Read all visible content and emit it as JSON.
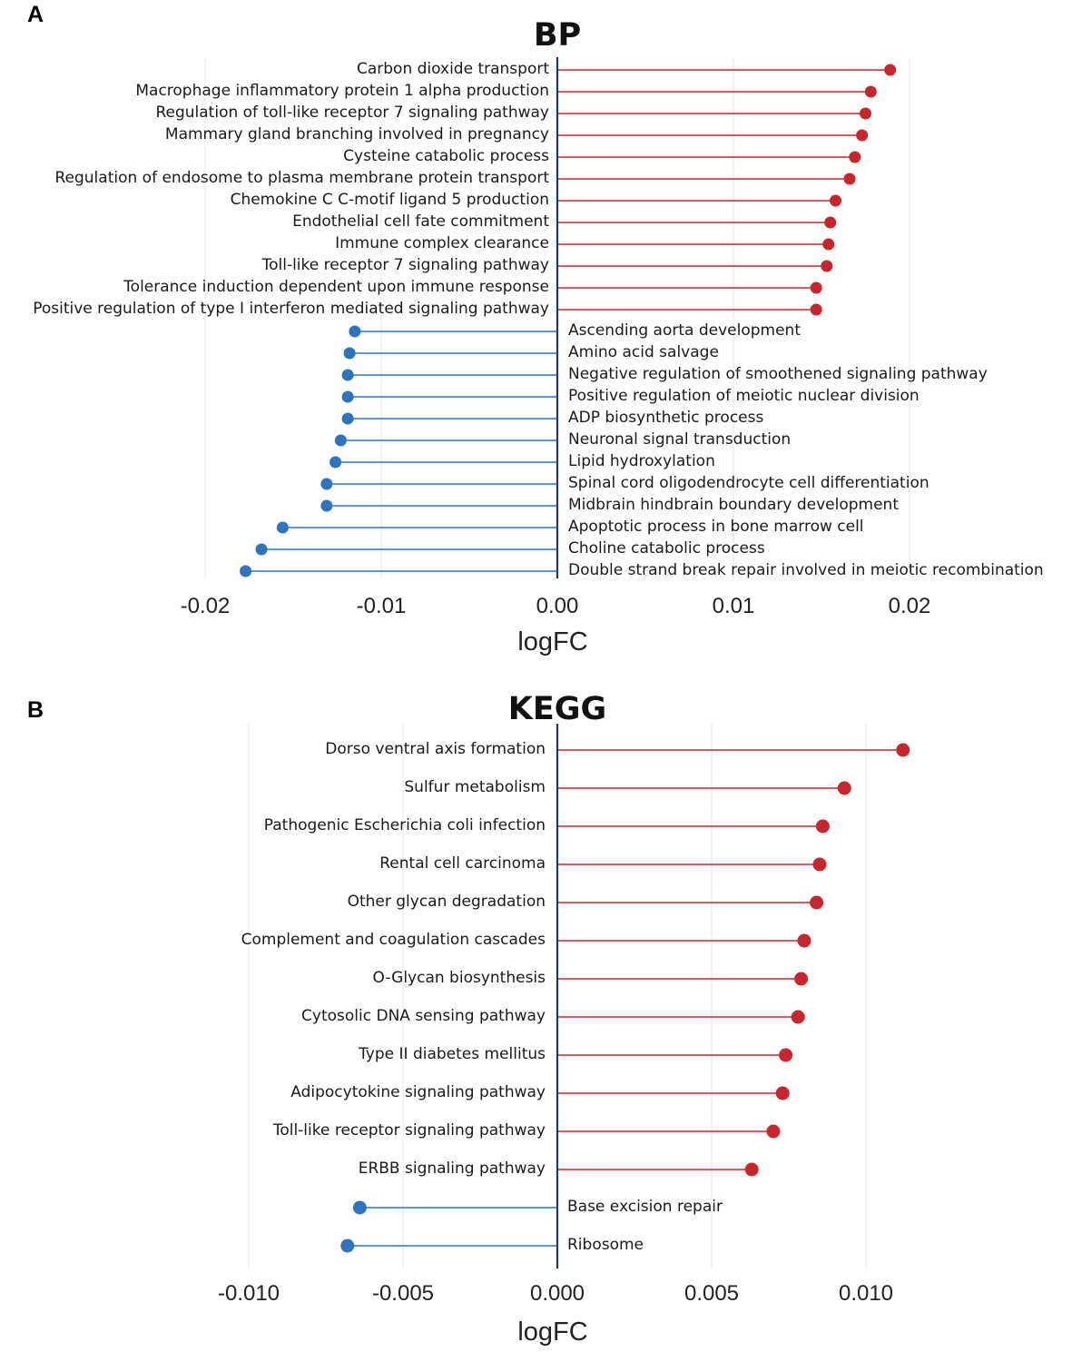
{
  "panels": {
    "a": "A",
    "b": "B"
  },
  "chart_data": [
    {
      "type": "lollipop",
      "title": "BP",
      "xlabel": "logFC",
      "ylabel": "",
      "xlim": [
        -0.02,
        0.02
      ],
      "xticks": [
        -0.02,
        -0.01,
        0.0,
        0.01,
        0.02
      ],
      "xtick_labels": [
        "-0.02",
        "-0.01",
        "0.00",
        "0.01",
        "0.02"
      ],
      "colors": {
        "up": "#c8252e",
        "down": "#2f73bd",
        "zero_line": "#1c3a5e"
      },
      "terms": [
        {
          "label": "Carbon dioxide transport",
          "value": 0.0189
        },
        {
          "label": "Macrophage inflammatory protein 1 alpha production",
          "value": 0.0178
        },
        {
          "label": "Regulation of toll-like receptor 7 signaling pathway",
          "value": 0.0175
        },
        {
          "label": "Mammary gland branching involved in pregnancy",
          "value": 0.0173
        },
        {
          "label": "Cysteine catabolic process",
          "value": 0.0169
        },
        {
          "label": "Regulation of endosome to plasma membrane protein transport",
          "value": 0.0166
        },
        {
          "label": "Chemokine C C-motif ligand 5 production",
          "value": 0.0158
        },
        {
          "label": "Endothelial cell fate commitment",
          "value": 0.0155
        },
        {
          "label": "Immune complex clearance",
          "value": 0.0154
        },
        {
          "label": "Toll-like receptor 7 signaling pathway",
          "value": 0.0153
        },
        {
          "label": "Tolerance induction dependent upon immune response",
          "value": 0.0147
        },
        {
          "label": "Positive regulation of type I interferon mediated signaling pathway",
          "value": 0.0147
        },
        {
          "label": "Ascending aorta development",
          "value": -0.0115
        },
        {
          "label": "Amino acid salvage",
          "value": -0.0118
        },
        {
          "label": "Negative regulation of smoothened signaling pathway",
          "value": -0.0119
        },
        {
          "label": "Positive regulation of meiotic nuclear division",
          "value": -0.0119
        },
        {
          "label": "ADP biosynthetic process",
          "value": -0.0119
        },
        {
          "label": "Neuronal signal transduction",
          "value": -0.0123
        },
        {
          "label": "Lipid hydroxylation",
          "value": -0.0126
        },
        {
          "label": "Spinal cord oligodendrocyte cell differentiation",
          "value": -0.0131
        },
        {
          "label": "Midbrain hindbrain boundary development",
          "value": -0.0131
        },
        {
          "label": "Apoptotic process in bone marrow cell",
          "value": -0.0156
        },
        {
          "label": "Choline catabolic process",
          "value": -0.0168
        },
        {
          "label": "Double strand break repair involved in meiotic recombination",
          "value": -0.0177
        }
      ]
    },
    {
      "type": "lollipop",
      "title": "KEGG",
      "xlabel": "logFC",
      "ylabel": "",
      "xlim": [
        -0.0115,
        0.0115
      ],
      "xticks": [
        -0.01,
        -0.005,
        0.0,
        0.005,
        0.01
      ],
      "xtick_labels": [
        "-0.010",
        "-0.005",
        "0.000",
        "0.005",
        "0.010"
      ],
      "colors": {
        "up": "#c8252e",
        "down": "#2f73bd",
        "zero_line": "#1c3a5e"
      },
      "terms": [
        {
          "label": "Dorso ventral axis formation",
          "value": 0.0112
        },
        {
          "label": "Sulfur metabolism",
          "value": 0.0093
        },
        {
          "label": "Pathogenic Escherichia coli infection",
          "value": 0.0086
        },
        {
          "label": "Rental cell carcinoma",
          "value": 0.0085
        },
        {
          "label": "Other glycan degradation",
          "value": 0.0084
        },
        {
          "label": "Complement and coagulation cascades",
          "value": 0.008
        },
        {
          "label": "O-Glycan biosynthesis",
          "value": 0.0079
        },
        {
          "label": "Cytosolic DNA sensing pathway",
          "value": 0.0078
        },
        {
          "label": "Type II diabetes mellitus",
          "value": 0.0074
        },
        {
          "label": "Adipocytokine signaling pathway",
          "value": 0.0073
        },
        {
          "label": "Toll-like receptor signaling pathway",
          "value": 0.007
        },
        {
          "label": "ERBB signaling pathway",
          "value": 0.0063
        },
        {
          "label": "Base excision repair",
          "value": -0.0064
        },
        {
          "label": "Ribosome",
          "value": -0.0068
        }
      ]
    }
  ]
}
